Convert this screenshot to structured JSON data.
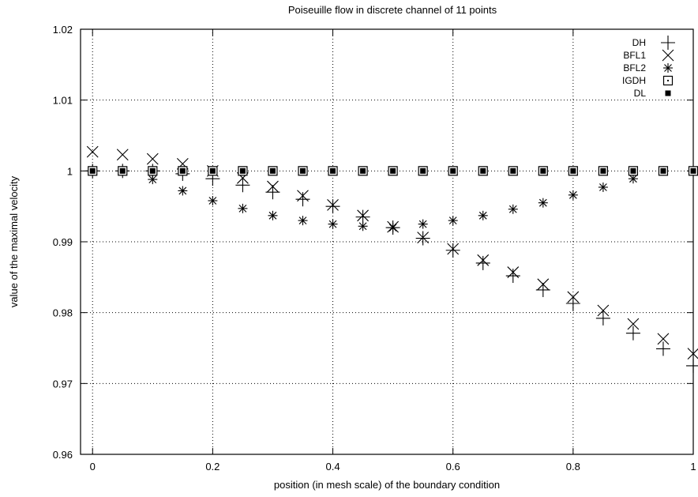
{
  "chart_data": {
    "type": "scatter",
    "title": "Poiseuille flow in discrete channel of 11 points",
    "xlabel": "position (in mesh scale) of the boundary condition",
    "ylabel": "value of the maximal velocity",
    "xlim": [
      -0.02,
      1.0
    ],
    "ylim": [
      0.96,
      1.02
    ],
    "xticks": [
      "0",
      "0.2",
      "0.4",
      "0.6",
      "0.8",
      "1"
    ],
    "yticks": [
      "0.96",
      "0.97",
      "0.98",
      "0.99",
      "1",
      "1.01",
      "1.02"
    ],
    "grid": true,
    "legend_position": "top-right",
    "series": [
      {
        "name": "DH",
        "marker": "plus",
        "x": [
          0,
          0.05,
          0.1,
          0.15,
          0.2,
          0.25,
          0.3,
          0.35,
          0.4,
          0.45,
          0.5,
          0.55,
          0.6,
          0.65,
          0.7,
          0.75,
          0.8,
          0.85,
          0.9,
          0.95,
          1.0
        ],
        "y": [
          1.0,
          1.0,
          1.0,
          0.9996,
          0.9989,
          0.998,
          0.997,
          0.996,
          0.995,
          0.9935,
          0.992,
          0.9905,
          0.9888,
          0.987,
          0.9852,
          0.9832,
          0.9813,
          0.9792,
          0.9771,
          0.9749,
          0.9725
        ]
      },
      {
        "name": "BFL1",
        "marker": "cross",
        "x": [
          0,
          0.05,
          0.1,
          0.15,
          0.2,
          0.25,
          0.3,
          0.35,
          0.4,
          0.45,
          0.5,
          0.55,
          0.6,
          0.65,
          0.7,
          0.75,
          0.8,
          0.85,
          0.9,
          0.95,
          1.0
        ],
        "y": [
          1.0027,
          1.0023,
          1.0017,
          1.001,
          1.0,
          0.999,
          0.9978,
          0.9965,
          0.9952,
          0.9937,
          0.9921,
          0.9906,
          0.989,
          0.9874,
          0.9857,
          0.984,
          0.9822,
          0.9803,
          0.9784,
          0.9763,
          0.9742
        ]
      },
      {
        "name": "BFL2",
        "marker": "star",
        "x": [
          0,
          0.05,
          0.1,
          0.15,
          0.2,
          0.25,
          0.3,
          0.35,
          0.4,
          0.45,
          0.5,
          0.55,
          0.6,
          0.65,
          0.7,
          0.75,
          0.8,
          0.85,
          0.9,
          0.95,
          1.0
        ],
        "y": [
          1.0,
          1.0,
          0.9988,
          0.9972,
          0.9958,
          0.9947,
          0.9937,
          0.993,
          0.9925,
          0.9922,
          0.992,
          0.9925,
          0.993,
          0.9937,
          0.9946,
          0.9955,
          0.9966,
          0.9977,
          0.9989,
          1.0,
          1.0
        ]
      },
      {
        "name": "IGDH",
        "marker": "dotted-square",
        "x": [
          0,
          0.05,
          0.1,
          0.15,
          0.2,
          0.25,
          0.3,
          0.35,
          0.4,
          0.45,
          0.5,
          0.55,
          0.6,
          0.65,
          0.7,
          0.75,
          0.8,
          0.85,
          0.9,
          0.95,
          1.0
        ],
        "y": [
          1.0,
          1.0,
          1.0,
          1.0,
          1.0,
          1.0,
          1.0,
          1.0,
          1.0,
          1.0,
          1.0,
          1.0,
          1.0,
          1.0,
          1.0,
          1.0,
          1.0,
          1.0,
          1.0,
          1.0,
          1.0
        ]
      },
      {
        "name": "DL",
        "marker": "filled-square",
        "x": [
          0,
          0.05,
          0.1,
          0.15,
          0.2,
          0.25,
          0.3,
          0.35,
          0.4,
          0.45,
          0.5,
          0.55,
          0.6,
          0.65,
          0.7,
          0.75,
          0.8,
          0.85,
          0.9,
          0.95,
          1.0
        ],
        "y": [
          1.0,
          1.0,
          1.0,
          1.0,
          1.0,
          1.0,
          1.0,
          1.0,
          1.0,
          1.0,
          1.0,
          1.0,
          1.0,
          1.0,
          1.0,
          1.0,
          1.0,
          1.0,
          1.0,
          1.0,
          1.0
        ]
      }
    ]
  }
}
